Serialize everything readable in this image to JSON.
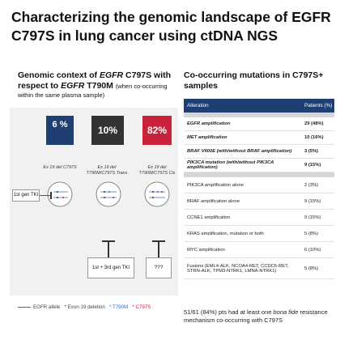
{
  "title": "Characterizing the genomic landscape of EGFR C797S in lung cancer using ctDNA NGS",
  "left": {
    "subtitle_part1": "Genomic context of ",
    "subtitle_gene1": "EGFR",
    "subtitle_part2": " C797S with respect to ",
    "subtitle_gene2": "EGFR",
    "subtitle_part3": " T790M",
    "subtitle_note": "(when co-occurring",
    "subtitle_note2": "within the same plasma sample)",
    "percent_1": "6 %",
    "percent_2": "10%",
    "percent_3": "82%",
    "col1_label": "Ex 19 del C797S",
    "col2_label": "Ex 19 del T790M/C797S Trans",
    "col3_label": "Ex 19 del T790M/C797S Cis",
    "tki_label": "1st gen TKI",
    "tki2_label": "1st + 3rd gen TKI",
    "unknown_label": "???",
    "legend_allele": "EGFR allele",
    "legend_ex19": "* Exon 19 deletion",
    "legend_t790m": "* T790M",
    "legend_c797s": "* C797S",
    "colors": {
      "dark_blue": "#1f3f73",
      "dark_gray": "#333333",
      "red": "#c8233b",
      "blue": "#3a6bc4"
    }
  },
  "right": {
    "subtitle": "Co-occurring mutations in C797S+ samples",
    "header_alteration": "Alteration",
    "header_patients": "Patients (%)",
    "bold_rows": [
      {
        "alteration": "EGFR amplification",
        "patients": "29 (48%)"
      },
      {
        "alteration": "MET amplification",
        "patients": "10 (16%)"
      },
      {
        "alteration": "BRAF V600E (with/without BRAF amplification)",
        "patients": "3 (5%)"
      },
      {
        "alteration": "PIK3CA mutation (with/without PIK3CA amplification)",
        "patients": "9 (15%)"
      }
    ],
    "rows": [
      {
        "alteration": "PIK3CA amplification alone",
        "patients": "2 (3%)"
      },
      {
        "alteration": "BRAF amplification alone",
        "patients": "9 (15%)"
      },
      {
        "alteration": "CCNE1 amplification",
        "patients": "9 (15%)"
      },
      {
        "alteration": "KRAS amplification, mutation or both",
        "patients": "5 (8%)"
      },
      {
        "alteration": "MYC amplification",
        "patients": "6 (10%)"
      },
      {
        "alteration": "Fusions (EML4-ALK, NCOA4-RET, CCDC6-RET, STRN-ALK, TPM3-NTRK1, LMNA-NTRK1)",
        "patients": "5 (8%)"
      }
    ],
    "footer_part1": "51/61 (84%) pts had at least one ",
    "footer_italic": "bona fide",
    "footer_part2": " resistance mechanism co-occurring with C797S"
  }
}
